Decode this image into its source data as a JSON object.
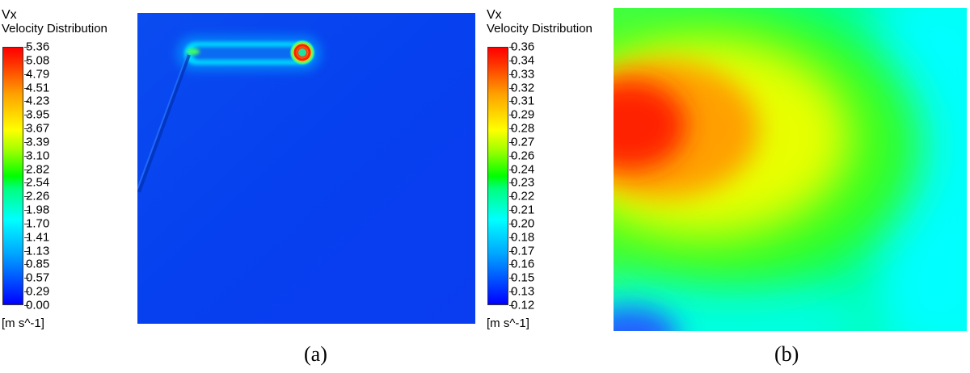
{
  "panel_a": {
    "legend": {
      "symbol": "Vx",
      "title": "Velocity Distribution",
      "unit": "[m s^-1]",
      "ticks": [
        "5.36",
        "5.08",
        "4.79",
        "4.51",
        "4.23",
        "3.95",
        "3.67",
        "3.39",
        "3.10",
        "2.82",
        "2.54",
        "2.26",
        "1.98",
        "1.70",
        "1.41",
        "1.13",
        "0.85",
        "0.57",
        "0.29",
        "0.00"
      ]
    },
    "caption": "(a)"
  },
  "panel_b": {
    "legend": {
      "symbol": "Vx",
      "title": "Velocity Distribution",
      "unit": "[m s^-1]",
      "ticks": [
        "0.36",
        "0.34",
        "0.33",
        "0.32",
        "0.31",
        "0.29",
        "0.28",
        "0.27",
        "0.26",
        "0.24",
        "0.23",
        "0.22",
        "0.21",
        "0.20",
        "0.18",
        "0.17",
        "0.16",
        "0.15",
        "0.13",
        "0.12"
      ]
    },
    "caption": "(b)"
  },
  "colors": {
    "scale_low": "#0000ff",
    "scale_mid": "#00ff00",
    "scale_high": "#ff0000"
  }
}
